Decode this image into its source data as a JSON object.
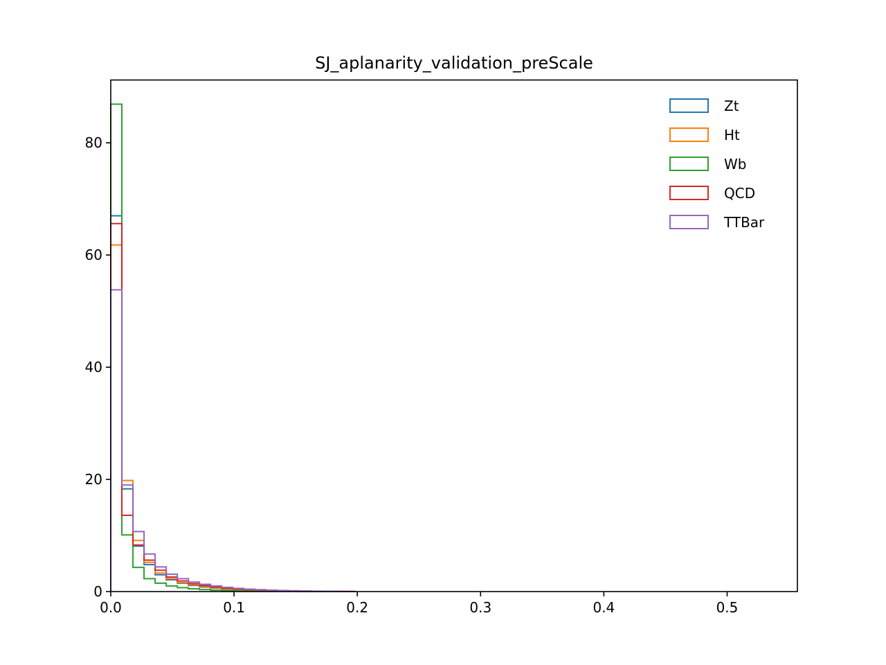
{
  "chart_data": {
    "type": "histogram",
    "title": "SJ_aplanarity_validation_preScale",
    "xlabel": "",
    "ylabel": "",
    "xlim": [
      0.0,
      0.557
    ],
    "ylim": [
      0,
      91.2
    ],
    "x_ticks": [
      0.0,
      0.1,
      0.2,
      0.3,
      0.4,
      0.5
    ],
    "x_tick_labels": [
      "0.0",
      "0.1",
      "0.2",
      "0.3",
      "0.4",
      "0.5"
    ],
    "y_ticks": [
      0,
      20,
      40,
      60,
      80
    ],
    "y_tick_labels": [
      "0",
      "20",
      "40",
      "60",
      "80"
    ],
    "grid": false,
    "legend_position": "top-right",
    "bin_edges": [
      0.0,
      0.009,
      0.018,
      0.027,
      0.036,
      0.045,
      0.054,
      0.063,
      0.072,
      0.081,
      0.09,
      0.099,
      0.108,
      0.117,
      0.126,
      0.135,
      0.144,
      0.153,
      0.162,
      0.171,
      0.18,
      0.189,
      0.198
    ],
    "series": [
      {
        "name": "Zt",
        "color": "#1f77b4",
        "values": [
          67,
          18.3,
          8.1,
          4.8,
          3.0,
          2.1,
          1.5,
          1.1,
          0.8,
          0.6,
          0.45,
          0.35,
          0.27,
          0.2,
          0.16,
          0.12,
          0.09,
          0.07,
          0.05,
          0.04,
          0.03,
          0.02
        ]
      },
      {
        "name": "Ht",
        "color": "#ff7f0e",
        "values": [
          61.8,
          19.8,
          9.1,
          5.2,
          3.3,
          2.3,
          1.6,
          1.2,
          0.9,
          0.65,
          0.5,
          0.38,
          0.29,
          0.22,
          0.17,
          0.13,
          0.1,
          0.08,
          0.06,
          0.04,
          0.03,
          0.02
        ]
      },
      {
        "name": "Wb",
        "color": "#2ca02c",
        "values": [
          86.9,
          10.1,
          4.3,
          2.3,
          1.5,
          1.0,
          0.7,
          0.5,
          0.35,
          0.25,
          0.18,
          0.13,
          0.1,
          0.07,
          0.05,
          0.04,
          0.03,
          0.02,
          0.015,
          0.01,
          0.01,
          0.005
        ]
      },
      {
        "name": "QCD",
        "color": "#d62728",
        "values": [
          65.6,
          13.6,
          8.3,
          5.6,
          3.8,
          2.6,
          1.9,
          1.4,
          1.05,
          0.8,
          0.6,
          0.45,
          0.34,
          0.26,
          0.2,
          0.15,
          0.11,
          0.08,
          0.06,
          0.05,
          0.03,
          0.02
        ]
      },
      {
        "name": "TTBar",
        "color": "#9467bd",
        "values": [
          53.8,
          19.0,
          10.7,
          6.7,
          4.4,
          3.1,
          2.3,
          1.7,
          1.3,
          1.0,
          0.75,
          0.57,
          0.44,
          0.34,
          0.26,
          0.2,
          0.15,
          0.11,
          0.08,
          0.06,
          0.04,
          0.03
        ]
      }
    ]
  }
}
